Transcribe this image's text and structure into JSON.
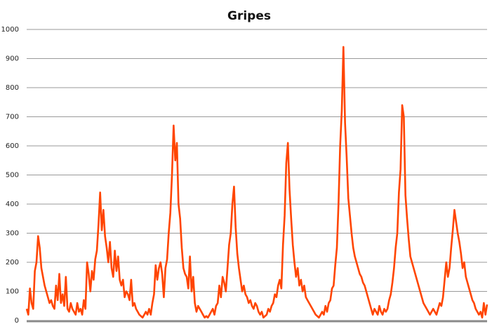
{
  "chart_data": {
    "type": "line",
    "title": "Gripes",
    "xlabel": "",
    "ylabel": "",
    "ylim": [
      0,
      1000
    ],
    "yticks": [
      0,
      100,
      200,
      300,
      400,
      500,
      600,
      700,
      800,
      900,
      1000
    ],
    "grid": true,
    "legend": "none",
    "color": "#FF4500",
    "series": [
      {
        "values": [
          40,
          20,
          110,
          60,
          40,
          170,
          200,
          290,
          250,
          180,
          150,
          120,
          100,
          80,
          60,
          70,
          50,
          40,
          120,
          70,
          160,
          60,
          90,
          50,
          150,
          40,
          30,
          60,
          40,
          30,
          20,
          60,
          30,
          40,
          20,
          70,
          40,
          200,
          160,
          100,
          170,
          140,
          210,
          240,
          330,
          440,
          310,
          380,
          290,
          250,
          200,
          270,
          180,
          150,
          240,
          170,
          220,
          140,
          120,
          140,
          80,
          100,
          90,
          70,
          140,
          50,
          60,
          40,
          30,
          20,
          15,
          10,
          20,
          30,
          20,
          40,
          20,
          60,
          90,
          190,
          140,
          180,
          200,
          160,
          80,
          180,
          210,
          300,
          370,
          500,
          670,
          550,
          610,
          400,
          350,
          250,
          180,
          160,
          150,
          110,
          220,
          100,
          150,
          60,
          30,
          50,
          40,
          30,
          20,
          10,
          15,
          10,
          20,
          30,
          40,
          20,
          50,
          60,
          120,
          80,
          150,
          130,
          100,
          180,
          260,
          300,
          400,
          460,
          320,
          230,
          180,
          140,
          100,
          120,
          90,
          80,
          60,
          70,
          50,
          40,
          60,
          50,
          30,
          20,
          30,
          10,
          15,
          20,
          40,
          30,
          50,
          60,
          90,
          80,
          120,
          140,
          110,
          260,
          360,
          540,
          610,
          450,
          350,
          260,
          200,
          150,
          180,
          120,
          140,
          100,
          120,
          80,
          70,
          60,
          50,
          40,
          30,
          20,
          15,
          10,
          20,
          30,
          20,
          50,
          30,
          60,
          70,
          110,
          120,
          190,
          250,
          400,
          600,
          720,
          940,
          680,
          560,
          420,
          360,
          300,
          250,
          220,
          200,
          180,
          160,
          150,
          130,
          120,
          100,
          80,
          60,
          40,
          20,
          40,
          30,
          20,
          50,
          30,
          20,
          40,
          30,
          40,
          70,
          90,
          130,
          180,
          250,
          300,
          440,
          520,
          740,
          700,
          430,
          350,
          280,
          220,
          200,
          180,
          160,
          140,
          120,
          100,
          80,
          60,
          50,
          40,
          30,
          20,
          30,
          40,
          30,
          20,
          40,
          60,
          50,
          80,
          140,
          200,
          150,
          180,
          250,
          310,
          380,
          340,
          300,
          270,
          230,
          180,
          200,
          150,
          130,
          110,
          90,
          70,
          60,
          40,
          30,
          20,
          30,
          10,
          60,
          20,
          55
        ]
      }
    ]
  }
}
